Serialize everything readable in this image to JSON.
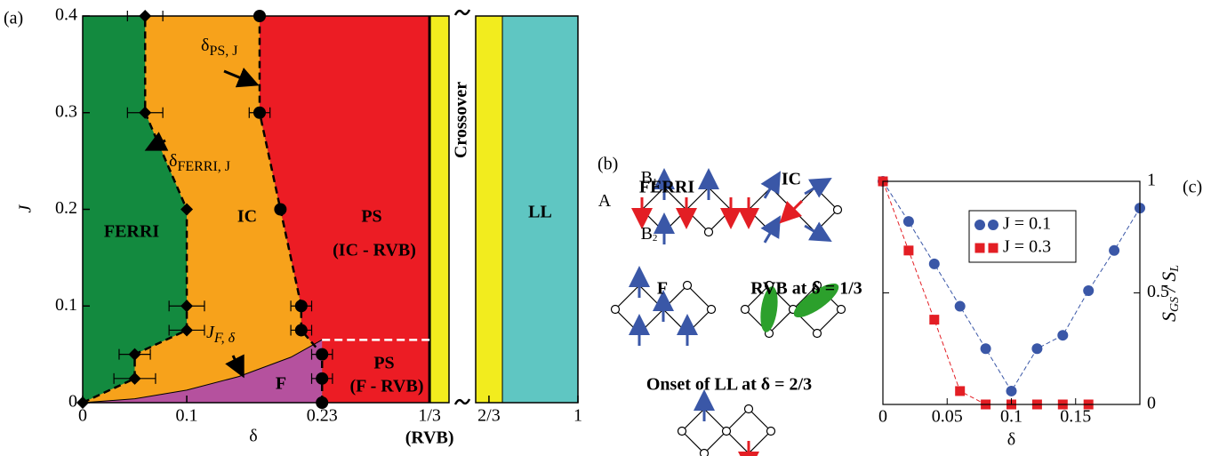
{
  "chart_data": [
    {
      "type": "phase",
      "panel_label": "(a)",
      "xlabel": "δ",
      "ylabel": "J",
      "xlim": [
        0,
        0.352
      ],
      "ylim": [
        0,
        0.4
      ],
      "xticks": [
        0,
        0.1,
        0.23,
        {
          "value": 0.3333,
          "label": "1/3"
        }
      ],
      "xtick_note": "(RVB)",
      "yticks": [
        0,
        0.1,
        0.2,
        0.3,
        0.4
      ],
      "series": [
        {
          "marker": "diamond",
          "color": "#000000",
          "x": [
            0,
            0.05,
            0.05,
            0.1,
            0.1,
            0.1,
            0.06,
            0.06
          ],
          "values": [
            0,
            0.025,
            0.05,
            0.075,
            0.1,
            0.2,
            0.3,
            0.4
          ],
          "xerr": [
            0,
            0.02,
            0.015,
            0.017,
            0.017,
            0,
            0.017,
            0.017
          ]
        },
        {
          "marker": "circle",
          "color": "#000000",
          "x": [
            0.23,
            0.23,
            0.23,
            0.21,
            0.21,
            0.19,
            0.17,
            0.17
          ],
          "values": [
            0,
            0.025,
            0.05,
            0.075,
            0.1,
            0.2,
            0.3,
            0.4
          ],
          "xerr": [
            0,
            0.01,
            0.01,
            0.01,
            0.01,
            0,
            0.01,
            0
          ]
        }
      ],
      "jf_curve": {
        "x": [
          0,
          0.05,
          0.1,
          0.15,
          0.2,
          0.23
        ],
        "values": [
          0,
          0.004,
          0.013,
          0.027,
          0.047,
          0.065
        ]
      },
      "regions": [
        {
          "label": "FERRI",
          "color": "#138a3f"
        },
        {
          "label": "IC",
          "color": "#f7a21b"
        },
        {
          "label": "PS",
          "sublabel": "(IC - RVB)",
          "color": "#ec1c24"
        },
        {
          "label": "F",
          "color": "#b5519e"
        },
        {
          "label": "PS",
          "sublabel": "(F - RVB)",
          "color": "#ec1c24"
        }
      ],
      "annotations": [
        {
          "main": "δ",
          "sub": "PS, J"
        },
        {
          "main": "δ",
          "sub": "FERRI, J"
        },
        {
          "main": "J",
          "sub": "F, δ"
        }
      ],
      "strips": [
        {
          "label": "Crossover",
          "color": "#f2ec1e",
          "range": [
            0.3333,
            0.717
          ]
        },
        {
          "label": "LL",
          "color": "#5fc6c2",
          "range": [
            0.717,
            1
          ]
        }
      ],
      "xlim_right": [
        0.617,
        1
      ],
      "xticks_right": [
        {
          "value": 0.6667,
          "label": "2/3"
        },
        1
      ]
    },
    {
      "type": "line",
      "panel_label": "(c)",
      "xlabel": "δ",
      "ylabel_parts": [
        "S",
        "GS",
        " / S",
        "L"
      ],
      "xlim": [
        0,
        0.2
      ],
      "ylim": [
        0,
        1
      ],
      "xticks": [
        0,
        0.05,
        0.1,
        0.15
      ],
      "yticks": [
        0,
        0.5,
        1
      ],
      "series": [
        {
          "name": "J = 0.1",
          "color": "#3a57a7",
          "marker": "circle",
          "x": [
            0,
            0.02,
            0.04,
            0.06,
            0.08,
            0.1,
            0.12,
            0.14,
            0.16,
            0.18,
            0.2
          ],
          "values": [
            1,
            0.82,
            0.63,
            0.44,
            0.25,
            0.06,
            0.25,
            0.31,
            0.51,
            0.69,
            0.88
          ]
        },
        {
          "name": "J = 0.3",
          "color": "#e31e24",
          "marker": "square",
          "x": [
            0,
            0.02,
            0.04,
            0.06,
            0.08,
            0.1,
            0.12,
            0.14,
            0.16
          ],
          "values": [
            1,
            0.69,
            0.38,
            0.06,
            0,
            0,
            0,
            0,
            0
          ]
        }
      ]
    }
  ],
  "diagram": {
    "label": "(b)",
    "titles": [
      "FERRI",
      "IC",
      "F",
      "RVB at δ = 1/3",
      "Onset of LL at δ = 2/3"
    ],
    "site_labels": [
      {
        "text": "A"
      },
      {
        "text": "B",
        "sub": "1"
      },
      {
        "text": "B",
        "sub": "2"
      }
    ]
  }
}
